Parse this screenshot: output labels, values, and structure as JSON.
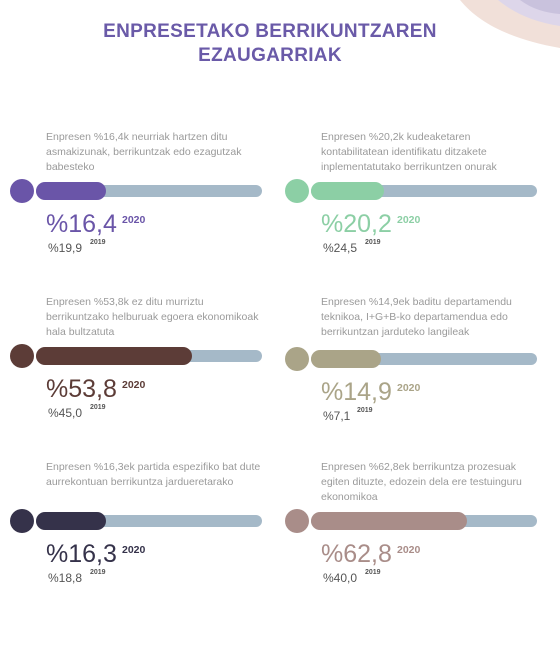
{
  "header": {
    "title_line1": "ENPRESETAKO BERRIKUNTZAREN",
    "title_line2": "EZAUGARRIAK"
  },
  "colors": {
    "track": "#a5b9c8",
    "title": "#6a5aa8"
  },
  "chart_data": [
    {
      "type": "bar",
      "description": "Enpresen %16,4k neurriak hartzen ditu asmakizunak, berrikuntzak edo ezagutzak babesteko",
      "value_label": "%16,4",
      "value": 16.4,
      "year": "2020",
      "previous_label": "%19,9",
      "previous_value": 19.9,
      "previous_year": "2019",
      "color": "#6a55a8"
    },
    {
      "type": "bar",
      "description": "Enpresen %20,2k kudeaketaren kontabilitatean identifikatu ditzakete inplementatutako berrikuntzen onurak",
      "value_label": "%20,2",
      "value": 20.2,
      "year": "2020",
      "previous_label": "%24,5",
      "previous_value": 24.5,
      "previous_year": "2019",
      "color": "#8ccfa5"
    },
    {
      "type": "bar",
      "description": "Enpresen %53,8k ez ditu murriztu berrikuntzako helburuak egoera ekonomikoak hala bultzatuta",
      "value_label": "%53,8",
      "value": 53.8,
      "year": "2020",
      "previous_label": "%45,0",
      "previous_value": 45.0,
      "previous_year": "2019",
      "color": "#5c3c37"
    },
    {
      "type": "bar",
      "description": "Enpresen %14,9ek baditu departamendu teknikoa, I+G+B-ko departamendua edo berrikuntzan jarduteko langileak",
      "value_label": "%14,9",
      "value": 14.9,
      "year": "2020",
      "previous_label": "%7,1",
      "previous_value": 7.1,
      "previous_year": "2019",
      "color": "#aaa488"
    },
    {
      "type": "bar",
      "description": "Enpresen %16,3ek partida espezifiko bat dute aurrekontuan berrikuntza jardueretarako",
      "value_label": "%16,3",
      "value": 16.3,
      "year": "2020",
      "previous_label": "%18,8",
      "previous_value": 18.8,
      "previous_year": "2019",
      "color": "#35324a"
    },
    {
      "type": "bar",
      "description": "Enpresen %62,8ek berrikuntza prozesuak egiten dituzte, edozein dela ere testuinguru ekonomikoa",
      "value_label": "%62,8",
      "value": 62.8,
      "year": "2020",
      "previous_label": "%40,0",
      "previous_value": 40.0,
      "previous_year": "2019",
      "color": "#a98d89"
    }
  ]
}
